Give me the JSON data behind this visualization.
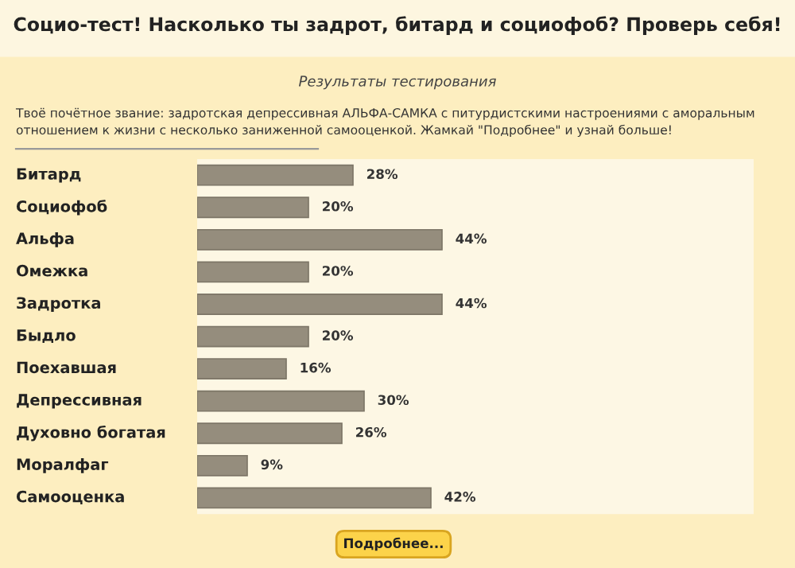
{
  "chart_data": {
    "type": "bar",
    "orientation": "horizontal",
    "title": "Социо-тест! Насколько ты задрот, битард и социофоб? Проверь себя!",
    "subtitle": "Результаты тестирования",
    "annotations": [
      "Твоё почётное звание: задротская депрессивная АЛЬФА-САМКА с питурдистскими настроениями с аморальным отношением к жизни с несколько заниженной самооценкой. Жамкай \"Подробнее\" и узнай больше!",
      "Подробнее..."
    ],
    "categories": [
      "Битард",
      "Социофоб",
      "Альфа",
      "Омежка",
      "Задротка",
      "Быдло",
      "Поехавшая",
      "Депрессивная",
      "Духовно богатая",
      "Моралфаг",
      "Самооценка"
    ],
    "values": [
      28,
      20,
      44,
      20,
      44,
      20,
      16,
      30,
      26,
      9,
      42
    ],
    "value_labels": [
      "28%",
      "20%",
      "44%",
      "20%",
      "44%",
      "20%",
      "16%",
      "30%",
      "26%",
      "9%",
      "42%"
    ],
    "color": "#958d7d",
    "xlim": [
      0,
      100
    ],
    "tick_labels": "y"
  }
}
